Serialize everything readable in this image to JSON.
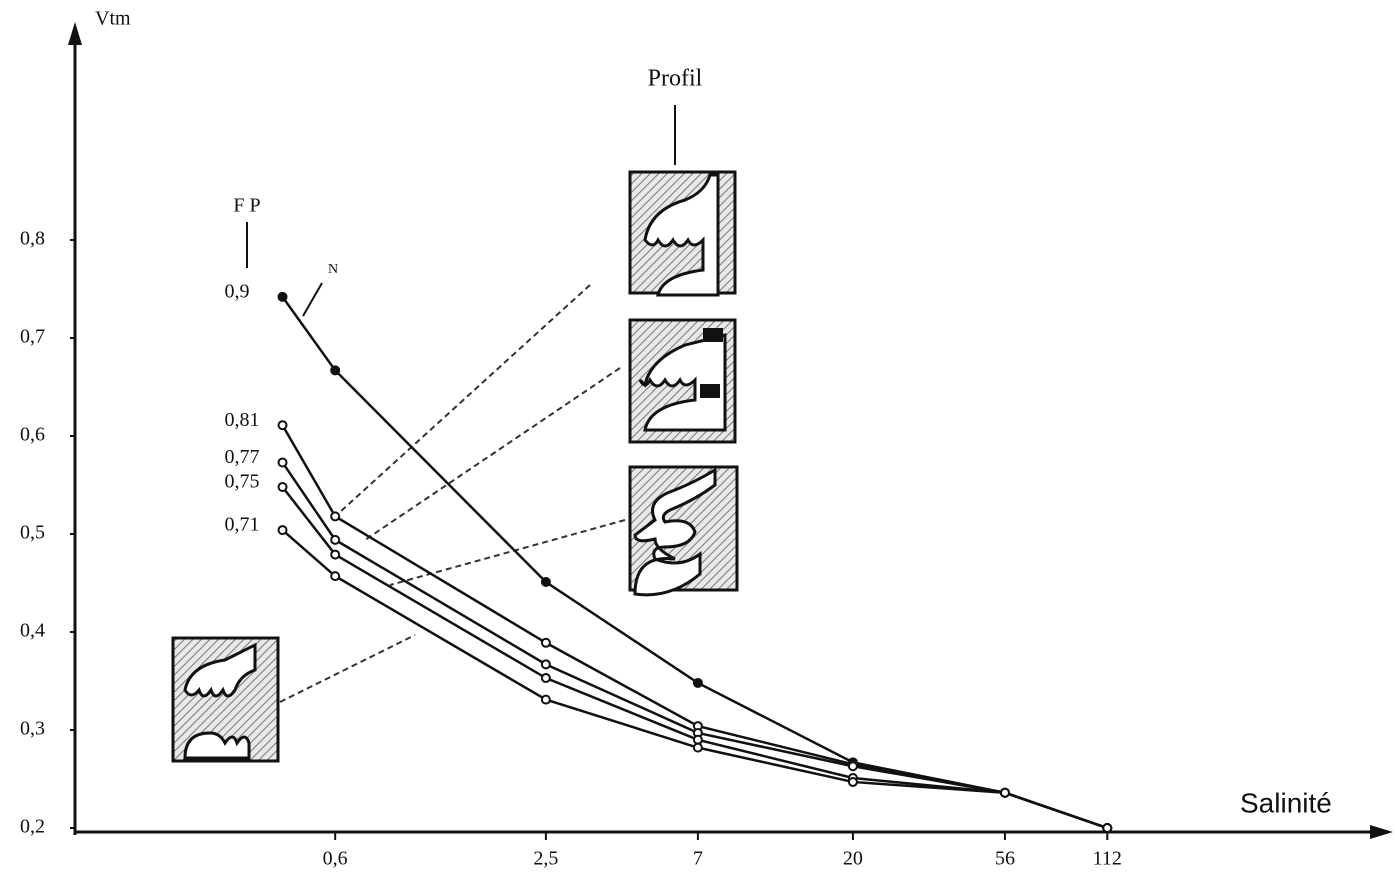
{
  "chart_data": {
    "type": "line",
    "y_label": "Vtm",
    "x_label": "Salinité",
    "annotation_profile": "Profil",
    "legend_title": "F P",
    "annotation_n": "N",
    "log_x": true,
    "x": [
      0.42,
      0.6,
      2.5,
      7,
      20,
      56,
      112
    ],
    "series": [
      {
        "name": "0,9",
        "color": "#111111",
        "values": [
          0.742,
          0.667,
          0.451,
          0.348,
          0.267,
          0.236,
          0.2
        ]
      },
      {
        "name": "0,81",
        "color": "#111111",
        "values": [
          0.611,
          0.518,
          0.389,
          0.304,
          0.265,
          0.236,
          0.2
        ]
      },
      {
        "name": "0,77",
        "color": "#111111",
        "values": [
          0.573,
          0.494,
          0.367,
          0.297,
          0.263,
          0.236,
          0.2
        ]
      },
      {
        "name": "0,75",
        "color": "#111111",
        "values": [
          0.548,
          0.479,
          0.353,
          0.29,
          0.251,
          0.236,
          0.2
        ]
      },
      {
        "name": "0,71",
        "color": "#111111",
        "values": [
          0.504,
          0.457,
          0.331,
          0.282,
          0.247,
          0.236,
          0.2
        ]
      }
    ],
    "xlim": [
      0.103,
      760
    ],
    "xticks": [
      {
        "value": 0.6,
        "label": "0,6"
      },
      {
        "value": 2.5,
        "label": "2,5"
      },
      7,
      20,
      56,
      112
    ],
    "ylim": [
      0.2,
      1.0
    ],
    "yticks": [
      {
        "value": 0.2,
        "label": "0,2"
      },
      {
        "value": 0.3,
        "label": "0,3"
      },
      {
        "value": 0.4,
        "label": "0,4"
      },
      {
        "value": 0.5,
        "label": "0,5"
      },
      {
        "value": 0.6,
        "label": "0,6"
      },
      {
        "value": 0.7,
        "label": "0,7"
      },
      {
        "value": 0.8,
        "label": "0,8"
      }
    ],
    "grid": false
  }
}
